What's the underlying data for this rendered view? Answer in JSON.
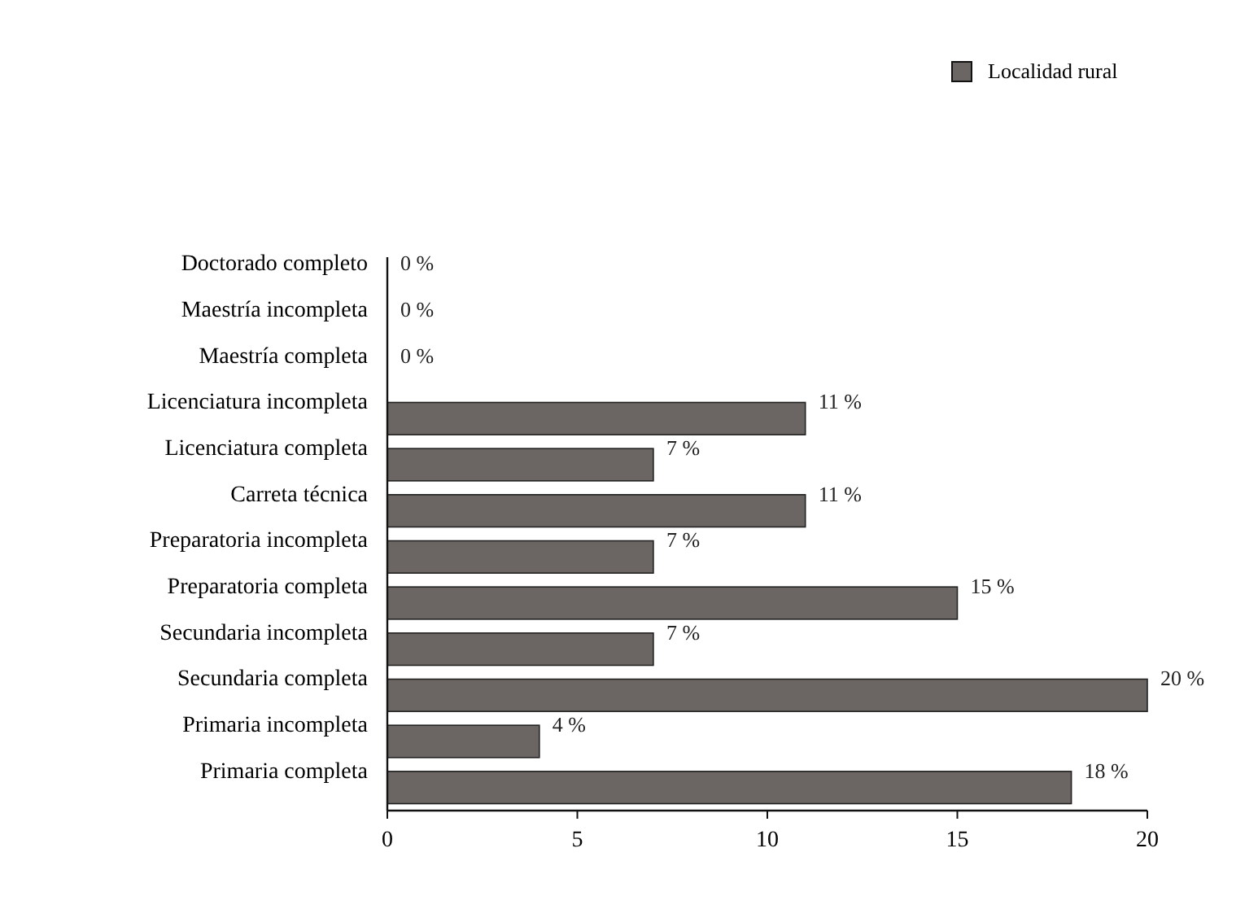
{
  "chart_data": {
    "type": "bar",
    "orientation": "horizontal",
    "categories": [
      "Doctorado completo",
      "Maestría incompleta",
      "Maestría completa",
      "Licenciatura incompleta",
      "Licenciatura completa",
      "Carreta técnica",
      "Preparatoria incompleta",
      "Preparatoria completa",
      "Secundaria incompleta",
      "Secundaria completa",
      "Primaria incompleta",
      "Primaria completa"
    ],
    "series": [
      {
        "name": "Localidad rural",
        "color": "#6b6663",
        "values": [
          0,
          0,
          0,
          11,
          7,
          11,
          7,
          15,
          7,
          20,
          4,
          18
        ],
        "value_labels": [
          "0 %",
          "0 %",
          "0 %",
          "11 %",
          "7 %",
          "11 %",
          "7 %",
          "15 %",
          "7 %",
          "20 %",
          "4 %",
          "18 %"
        ]
      }
    ],
    "xlim": [
      0,
      20
    ],
    "xticks": [
      0,
      5,
      10,
      15,
      20
    ],
    "legend": "top right",
    "grid": false
  }
}
